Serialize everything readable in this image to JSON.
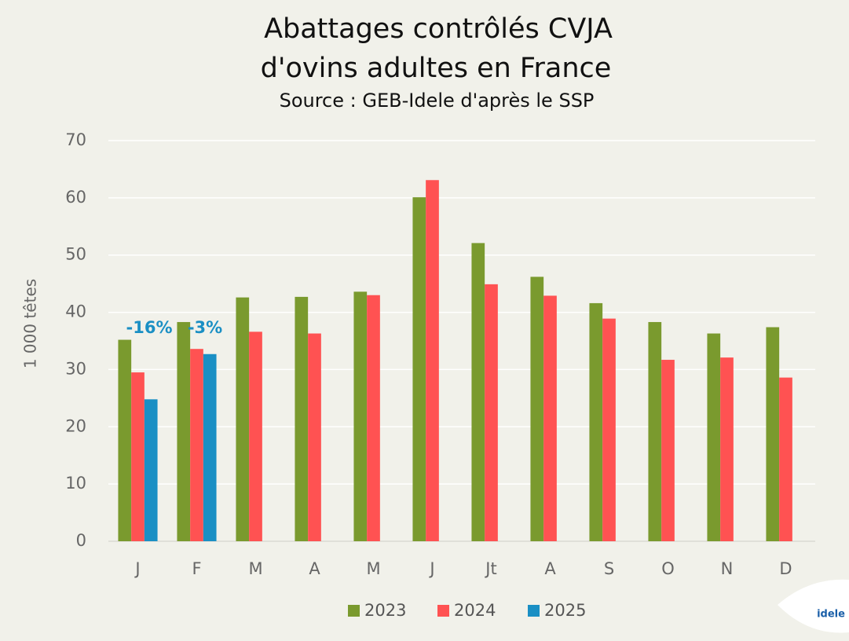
{
  "chart_data": {
    "type": "bar",
    "title": [
      "Abattages contrôlés CVJA",
      "d'ovins adultes en France"
    ],
    "subtitle": "Source : GEB-Idele d'après le SSP",
    "y_label": "1 000 têtes",
    "categories": [
      "J",
      "F",
      "M",
      "A",
      "M",
      "J",
      "Jt",
      "A",
      "S",
      "O",
      "N",
      "D"
    ],
    "series": [
      {
        "name": "2023",
        "color": "#7a9a2e",
        "values": [
          35.2,
          38.3,
          42.6,
          42.7,
          43.6,
          60.1,
          52.1,
          46.2,
          41.6,
          38.3,
          36.3,
          37.4
        ]
      },
      {
        "name": "2024",
        "color": "#ff5252",
        "values": [
          29.5,
          33.6,
          36.6,
          36.3,
          43.0,
          63.1,
          44.9,
          42.9,
          38.9,
          31.7,
          32.1,
          28.6
        ]
      },
      {
        "name": "2025",
        "color": "#1a8fc4",
        "values": [
          24.8,
          32.7,
          null,
          null,
          null,
          null,
          null,
          null,
          null,
          null,
          null,
          null
        ]
      }
    ],
    "annotations": [
      "-16%",
      "-3%"
    ],
    "ylim": [
      0,
      70
    ],
    "yticks": [
      0,
      10,
      20,
      30,
      40,
      50,
      60,
      70
    ],
    "grid": true,
    "legend": "bottom",
    "logo": "idele"
  }
}
